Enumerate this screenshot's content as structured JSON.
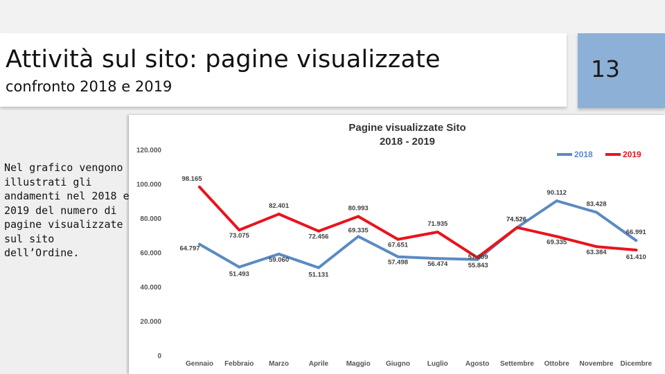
{
  "slide": {
    "title": "Attività sul sito: pagine visualizzate",
    "subtitle": "confronto 2018 e 2019",
    "page_number": "13",
    "body_text": "Nel grafico vengono illustrati gli andamenti nel 2018 e 2019 del numero di pagine visualizzate sul sito dell’Ordine."
  },
  "colors": {
    "series_2018": "#5b8ac2",
    "series_2019": "#e8141c",
    "page_box": "#8db0d6"
  },
  "chart_data": {
    "type": "line",
    "title": [
      "Pagine visualizzate Sito",
      "2018 - 2019"
    ],
    "xlabel": "",
    "ylabel": "",
    "categories": [
      "Gennaio",
      "Febbraio",
      "Marzo",
      "Aprile",
      "Maggio",
      "Giugno",
      "Luglio",
      "Agosto",
      "Settembre",
      "Ottobre",
      "Novembre",
      "Dicembre"
    ],
    "y_ticks": [
      "0",
      "20.000",
      "40.000",
      "60.000",
      "80.000",
      "100.000",
      "120.000"
    ],
    "ylim": [
      0,
      120000
    ],
    "grid": false,
    "legend_position": "top-right",
    "series": [
      {
        "name": "2018",
        "values": [
          64797,
          51493,
          59060,
          51131,
          69335,
          57498,
          56474,
          55843,
          74526,
          90112,
          83428,
          66991
        ],
        "labels": [
          "64.797",
          "51.493",
          "59.060",
          "51.131",
          "69.335",
          "57.498",
          "56.474",
          "55.843",
          "74.526",
          "90.112",
          "83.428",
          "66.991"
        ]
      },
      {
        "name": "2019",
        "values": [
          98165,
          73075,
          82401,
          72456,
          80993,
          67651,
          71935,
          57009,
          74526,
          69335,
          63384,
          61410
        ],
        "labels": [
          "98.165",
          "73.075",
          "82.401",
          "72.456",
          "80.993",
          "67.651",
          "71.935",
          "57.009",
          "74.526",
          "69.335",
          "63.384",
          "61.410"
        ]
      }
    ]
  }
}
